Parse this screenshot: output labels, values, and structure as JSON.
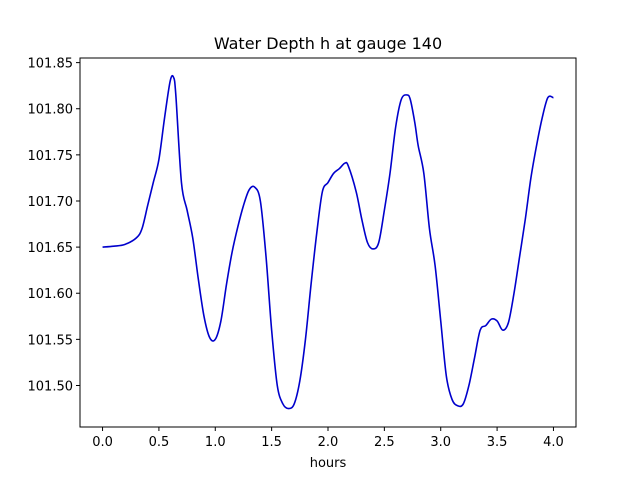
{
  "chart_data": {
    "type": "line",
    "title": "Water Depth h at gauge 140",
    "xlabel": "hours",
    "ylabel": "",
    "xlim": [
      -0.2,
      4.2
    ],
    "ylim": [
      101.455,
      101.855
    ],
    "x_ticks": [
      "0.0",
      "0.5",
      "1.0",
      "1.5",
      "2.0",
      "2.5",
      "3.0",
      "3.5",
      "4.0"
    ],
    "y_ticks": [
      "101.50",
      "101.55",
      "101.60",
      "101.65",
      "101.70",
      "101.75",
      "101.80",
      "101.85"
    ],
    "grid": false,
    "series": [
      {
        "color": "#0000cc",
        "x": [
          0.0,
          0.1,
          0.2,
          0.3,
          0.35,
          0.4,
          0.45,
          0.5,
          0.55,
          0.6,
          0.63,
          0.65,
          0.7,
          0.75,
          0.8,
          0.85,
          0.9,
          0.95,
          1.0,
          1.05,
          1.1,
          1.15,
          1.2,
          1.25,
          1.3,
          1.35,
          1.4,
          1.45,
          1.5,
          1.55,
          1.6,
          1.65,
          1.7,
          1.75,
          1.8,
          1.85,
          1.9,
          1.95,
          2.0,
          2.05,
          2.1,
          2.15,
          2.18,
          2.25,
          2.3,
          2.35,
          2.4,
          2.45,
          2.5,
          2.55,
          2.6,
          2.65,
          2.7,
          2.73,
          2.77,
          2.8,
          2.85,
          2.9,
          2.95,
          3.0,
          3.05,
          3.1,
          3.15,
          3.2,
          3.25,
          3.3,
          3.35,
          3.4,
          3.45,
          3.5,
          3.55,
          3.6,
          3.65,
          3.7,
          3.75,
          3.8,
          3.85,
          3.9,
          3.95,
          4.0
        ],
        "y": [
          101.65,
          101.651,
          101.653,
          101.66,
          101.67,
          101.695,
          101.72,
          101.745,
          101.79,
          101.83,
          101.834,
          101.815,
          101.72,
          101.69,
          101.66,
          101.615,
          101.575,
          101.552,
          101.55,
          101.57,
          101.61,
          101.645,
          101.672,
          101.695,
          101.712,
          101.715,
          101.7,
          101.64,
          101.56,
          101.5,
          101.48,
          101.475,
          101.48,
          101.505,
          101.55,
          101.61,
          101.665,
          101.71,
          101.72,
          101.73,
          101.735,
          101.741,
          101.738,
          101.71,
          101.68,
          101.655,
          101.648,
          101.655,
          101.69,
          101.73,
          101.78,
          101.81,
          101.815,
          101.81,
          101.785,
          101.76,
          101.73,
          101.67,
          101.63,
          101.57,
          101.51,
          101.485,
          101.478,
          101.48,
          101.5,
          101.53,
          101.56,
          101.565,
          101.572,
          101.57,
          101.56,
          101.568,
          101.6,
          101.64,
          101.68,
          101.725,
          101.76,
          101.79,
          101.812,
          101.812
        ]
      }
    ]
  }
}
